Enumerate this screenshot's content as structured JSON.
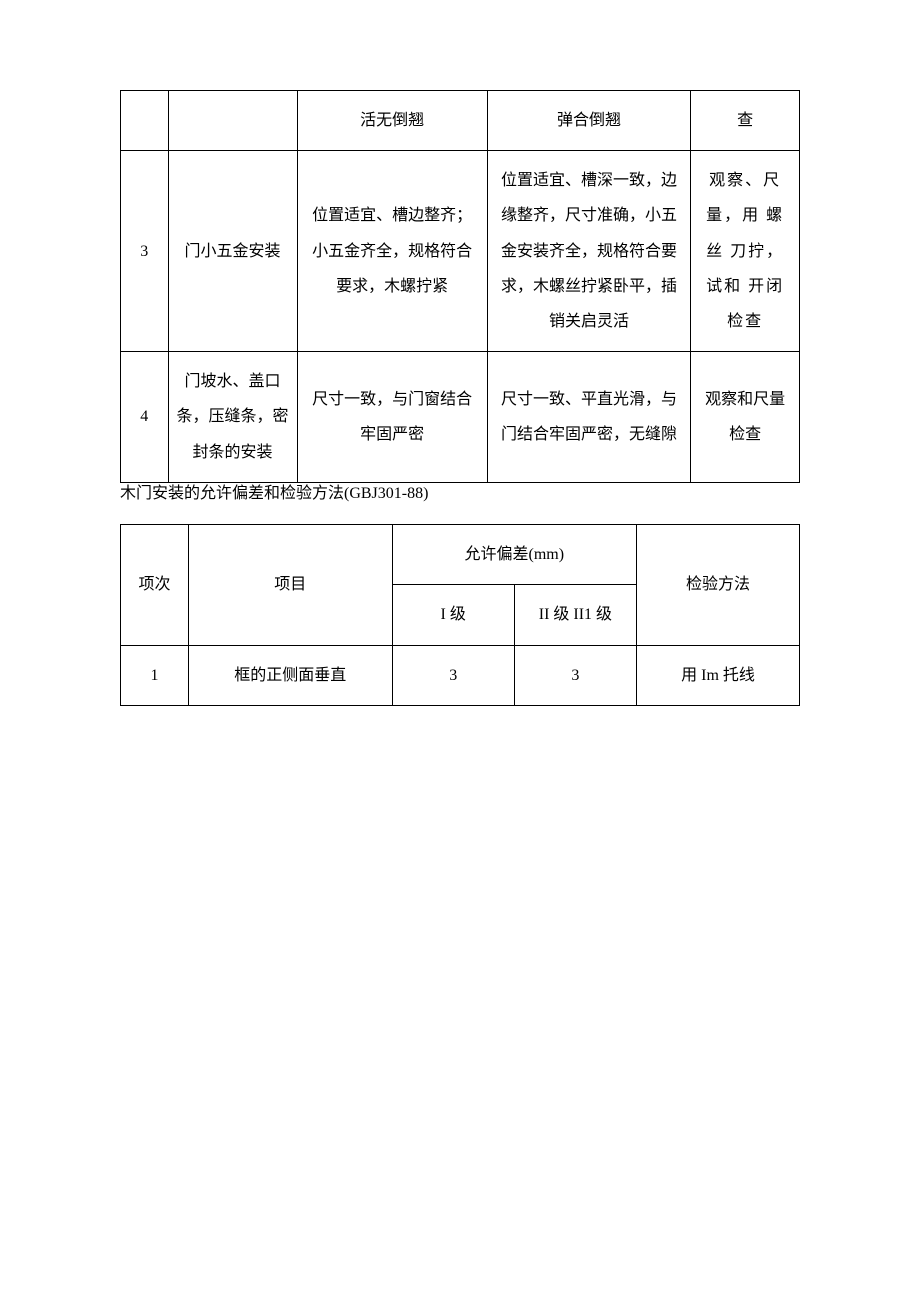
{
  "table1": {
    "rows": [
      {
        "idx": "",
        "item": "",
        "grade1": "活无倒翘",
        "grade2": "弹合倒翘",
        "method": "查"
      },
      {
        "idx": "3",
        "item": "门小五金安装",
        "grade1": "位置适宜、槽边整齐；小五金齐全，规格符合要求，木螺拧紧",
        "grade2": "位置适宜、槽深一致，边缘整齐，尺寸准确，小五金安装齐全，规格符合要求，木螺丝拧紧卧平，插销关启灵活",
        "method": "观察、尺量，用 螺丝 刀拧，试和 开闭 检查"
      },
      {
        "idx": "4",
        "item": "门坡水、盖口条，压缝条，密封条的安装",
        "grade1": "尺寸一致，与门窗结合牢固严密",
        "grade2": "尺寸一致、平直光滑，与门结合牢固严密，无缝隙",
        "method": "观察和尺量检查"
      }
    ]
  },
  "note": "木门安装的允许偏差和检验方法(GBJ301-88)",
  "table2": {
    "header": {
      "col1": "项次",
      "col2": "项目",
      "grp": "允许偏差(mm)",
      "col3": "I 级",
      "col4": "II 级 II1 级",
      "col5": "检验方法"
    },
    "rows": [
      {
        "idx": "1",
        "item": "框的正侧面垂直",
        "grade1": "3",
        "grade2": "3",
        "method": "用 Im 托线"
      }
    ]
  },
  "colors": {
    "border": "#000000",
    "background": "#ffffff",
    "text": "#000000"
  }
}
